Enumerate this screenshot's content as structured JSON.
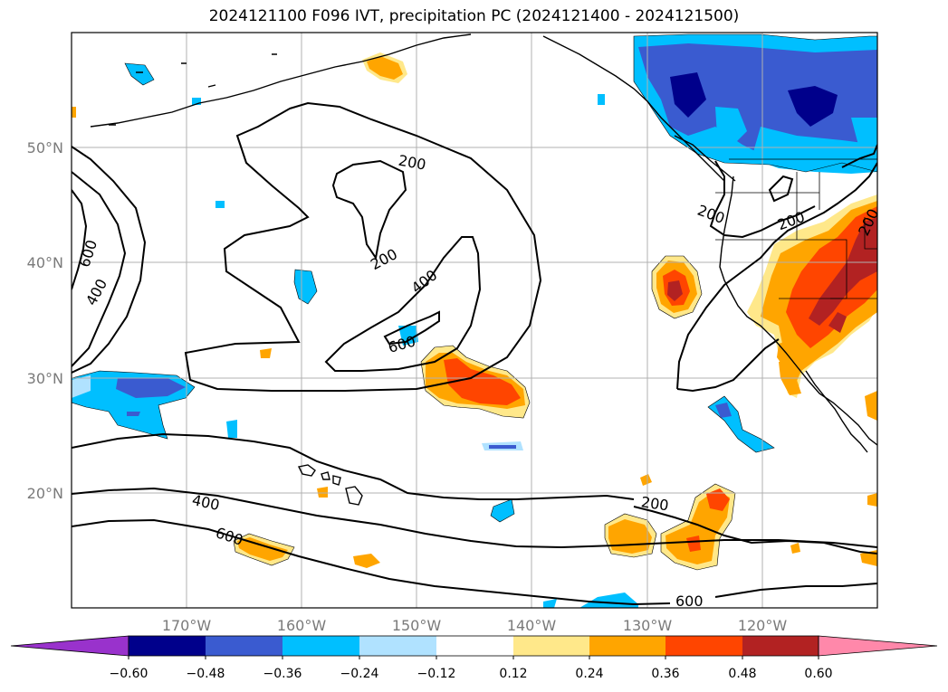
{
  "title": "2024121100 F096 IVT, precipitation PC (2024121400 - 2024121500)",
  "map": {
    "lon_range": [
      -180,
      -110
    ],
    "lat_range": [
      10,
      60
    ],
    "lat_labels": [
      "50°N",
      "40°N",
      "30°N",
      "20°N"
    ],
    "lon_labels": [
      "170°W",
      "160°W",
      "150°W",
      "140°W",
      "130°W",
      "120°W"
    ],
    "contour_levels": [
      "200",
      "400",
      "600"
    ],
    "contour_labels": [
      {
        "text": "200",
        "lon": -148.5,
        "lat": 48.8
      },
      {
        "text": "200",
        "lon": -152.5,
        "lat": 41.0
      },
      {
        "text": "400",
        "lon": -148.5,
        "lat": 37.3
      },
      {
        "text": "600",
        "lon": -151.5,
        "lat": 33.3
      },
      {
        "text": "600",
        "lon": -179.0,
        "lat": 40.7
      },
      {
        "text": "400",
        "lon": -178.0,
        "lat": 37.7
      },
      {
        "text": "200",
        "lon": -123.5,
        "lat": 44.0
      },
      {
        "text": "200",
        "lon": -117.0,
        "lat": 44.5
      },
      {
        "text": "200",
        "lon": -112.0,
        "lat": 44.5
      },
      {
        "text": "400",
        "lon": -162.0,
        "lat": 19.0
      },
      {
        "text": "600",
        "lon": -160.0,
        "lat": 15.8
      },
      {
        "text": "200",
        "lon": -129.0,
        "lat": 19.0
      },
      {
        "text": "600",
        "lon": -124.5,
        "lat": 10.6
      }
    ]
  },
  "colorbar": {
    "ticks": [
      "−0.60",
      "−0.48",
      "−0.36",
      "−0.24",
      "−0.12",
      "0.12",
      "0.24",
      "0.36",
      "0.48",
      "0.60"
    ],
    "colors": [
      "#9932cc",
      "#00008b",
      "#3a5bd0",
      "#00bfff",
      "#b0e2ff",
      "#ffffff",
      "#ffe88a",
      "#ffa500",
      "#ff4500",
      "#b22222",
      "#ff88aa"
    ]
  },
  "colors": {
    "grid": "#b0b0b0",
    "coast": "#000000",
    "contour": "#000000"
  }
}
